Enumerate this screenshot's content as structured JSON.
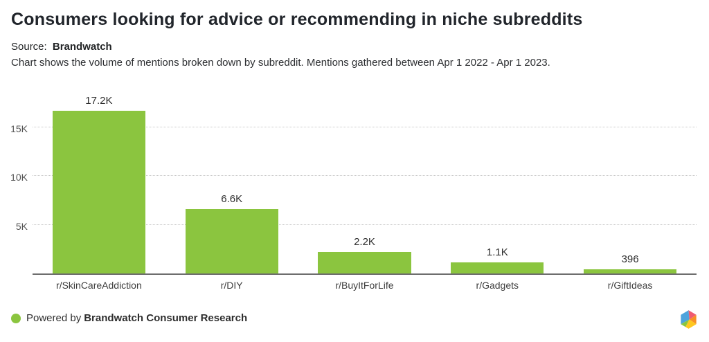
{
  "header": {
    "title": "Consumers looking for advice or recommending in niche subreddits",
    "source_label": "Source:",
    "source_value": "Brandwatch",
    "subtitle": "Chart shows the volume of mentions broken down by subreddit. Mentions gathered between Apr 1 2022 - Apr 1 2023."
  },
  "chart_data": {
    "type": "bar",
    "categories": [
      "r/SkinCareAddiction",
      "r/DIY",
      "r/BuyItForLife",
      "r/Gadgets",
      "r/GiftIdeas"
    ],
    "values": [
      17200,
      6600,
      2200,
      1100,
      396
    ],
    "value_labels": [
      "17.2K",
      "6.6K",
      "2.2K",
      "1.1K",
      "396"
    ],
    "title": "Consumers looking for advice or recommending in niche subreddits",
    "xlabel": "",
    "ylabel": "",
    "ylim": [
      0,
      18300
    ],
    "yticks": [
      {
        "value": 5000,
        "label": "5K"
      },
      {
        "value": 10000,
        "label": "10K"
      },
      {
        "value": 15000,
        "label": "15K"
      }
    ],
    "grid": "horizontal-dotted",
    "legend": "none",
    "bar_color": "#8BC53F",
    "axis_line_color": "#6e6e6e"
  },
  "footer": {
    "powered_by": "Powered by",
    "brand": "Brandwatch Consumer Research",
    "dot_color": "#8BC53F",
    "logo": {
      "name": "brandwatch-gem-logo",
      "colors": [
        "#4EA3DC",
        "#F05B72",
        "#F79027",
        "#FFC81F",
        "#8BC53F"
      ]
    }
  }
}
